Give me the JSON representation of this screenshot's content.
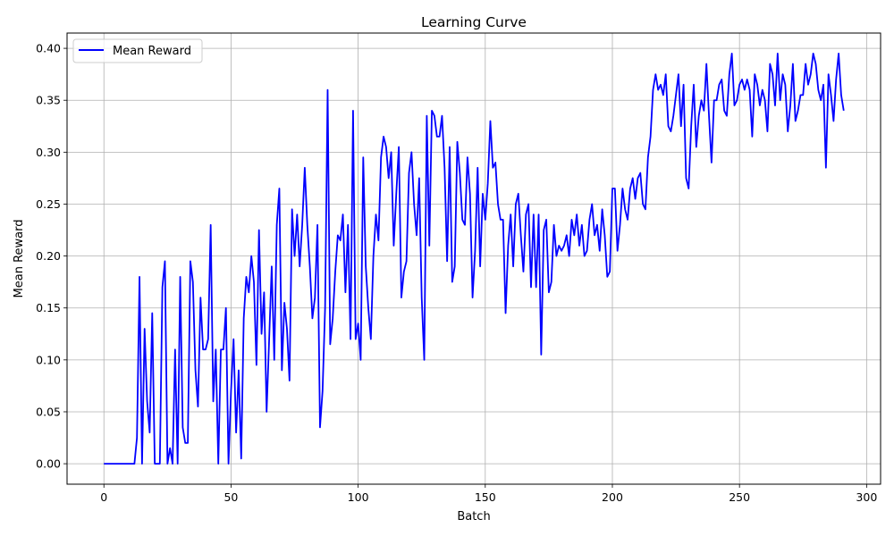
{
  "chart_data": {
    "type": "line",
    "title": "Learning Curve",
    "xlabel": "Batch",
    "ylabel": "Mean Reward",
    "xlim": [
      -14.5,
      305.5
    ],
    "ylim": [
      -0.0197,
      0.4147
    ],
    "xticks": [
      0,
      50,
      100,
      150,
      200,
      250,
      300
    ],
    "yticks": [
      0.0,
      0.05,
      0.1,
      0.15,
      0.2,
      0.25,
      0.3,
      0.35,
      0.4
    ],
    "grid": true,
    "legend_position": "top-left",
    "series": [
      {
        "name": "Mean Reward",
        "color": "#0000ff",
        "x": [
          0,
          1,
          2,
          3,
          4,
          5,
          6,
          7,
          8,
          9,
          10,
          11,
          12,
          13,
          14,
          15,
          16,
          17,
          18,
          19,
          20,
          21,
          22,
          23,
          24,
          25,
          26,
          27,
          28,
          29,
          30,
          31,
          32,
          33,
          34,
          35,
          36,
          37,
          38,
          39,
          40,
          41,
          42,
          43,
          44,
          45,
          46,
          47,
          48,
          49,
          50,
          51,
          52,
          53,
          54,
          55,
          56,
          57,
          58,
          59,
          60,
          61,
          62,
          63,
          64,
          65,
          66,
          67,
          68,
          69,
          70,
          71,
          72,
          73,
          74,
          75,
          76,
          77,
          78,
          79,
          80,
          81,
          82,
          83,
          84,
          85,
          86,
          87,
          88,
          89,
          90,
          91,
          92,
          93,
          94,
          95,
          96,
          97,
          98,
          99,
          100,
          101,
          102,
          103,
          104,
          105,
          106,
          107,
          108,
          109,
          110,
          111,
          112,
          113,
          114,
          115,
          116,
          117,
          118,
          119,
          120,
          121,
          122,
          123,
          124,
          125,
          126,
          127,
          128,
          129,
          130,
          131,
          132,
          133,
          134,
          135,
          136,
          137,
          138,
          139,
          140,
          141,
          142,
          143,
          144,
          145,
          146,
          147,
          148,
          149,
          150,
          151,
          152,
          153,
          154,
          155,
          156,
          157,
          158,
          159,
          160,
          161,
          162,
          163,
          164,
          165,
          166,
          167,
          168,
          169,
          170,
          171,
          172,
          173,
          174,
          175,
          176,
          177,
          178,
          179,
          180,
          181,
          182,
          183,
          184,
          185,
          186,
          187,
          188,
          189,
          190,
          191,
          192,
          193,
          194,
          195,
          196,
          197,
          198,
          199,
          200,
          201,
          202,
          203,
          204,
          205,
          206,
          207,
          208,
          209,
          210,
          211,
          212,
          213,
          214,
          215,
          216,
          217,
          218,
          219,
          220,
          221,
          222,
          223,
          224,
          225,
          226,
          227,
          228,
          229,
          230,
          231,
          232,
          233,
          234,
          235,
          236,
          237,
          238,
          239,
          240,
          241,
          242,
          243,
          244,
          245,
          246,
          247,
          248,
          249,
          250,
          251,
          252,
          253,
          254,
          255,
          256,
          257,
          258,
          259,
          260,
          261,
          262,
          263,
          264,
          265,
          266,
          267,
          268,
          269,
          270,
          271,
          272,
          273,
          274,
          275,
          276,
          277,
          278,
          279,
          280,
          281,
          282,
          283,
          284,
          285,
          286,
          287,
          288,
          289,
          290,
          291
        ],
        "y": [
          0,
          0,
          0,
          0,
          0,
          0,
          0,
          0,
          0,
          0,
          0,
          0,
          0,
          0.025,
          0.18,
          0,
          0.13,
          0.06,
          0.03,
          0.145,
          0,
          0,
          0,
          0.17,
          0.195,
          0,
          0.015,
          0,
          0.11,
          0,
          0.18,
          0.035,
          0.02,
          0.02,
          0.195,
          0.175,
          0.09,
          0.055,
          0.16,
          0.11,
          0.11,
          0.12,
          0.23,
          0.06,
          0.11,
          0,
          0.11,
          0.11,
          0.15,
          0,
          0.07,
          0.12,
          0.03,
          0.09,
          0.005,
          0.14,
          0.18,
          0.165,
          0.2,
          0.175,
          0.095,
          0.225,
          0.125,
          0.165,
          0.05,
          0.12,
          0.19,
          0.1,
          0.23,
          0.265,
          0.09,
          0.155,
          0.13,
          0.08,
          0.245,
          0.2,
          0.24,
          0.19,
          0.23,
          0.285,
          0.23,
          0.19,
          0.14,
          0.16,
          0.23,
          0.035,
          0.07,
          0.15,
          0.36,
          0.115,
          0.14,
          0.185,
          0.22,
          0.215,
          0.24,
          0.165,
          0.23,
          0.12,
          0.34,
          0.12,
          0.135,
          0.1,
          0.295,
          0.19,
          0.15,
          0.12,
          0.2,
          0.24,
          0.215,
          0.295,
          0.315,
          0.305,
          0.275,
          0.3,
          0.21,
          0.26,
          0.305,
          0.16,
          0.185,
          0.195,
          0.28,
          0.3,
          0.25,
          0.22,
          0.275,
          0.16,
          0.1,
          0.335,
          0.21,
          0.34,
          0.335,
          0.315,
          0.315,
          0.335,
          0.285,
          0.195,
          0.305,
          0.175,
          0.19,
          0.31,
          0.28,
          0.235,
          0.23,
          0.295,
          0.26,
          0.16,
          0.205,
          0.285,
          0.19,
          0.26,
          0.235,
          0.27,
          0.33,
          0.285,
          0.29,
          0.25,
          0.235,
          0.235,
          0.145,
          0.21,
          0.24,
          0.19,
          0.25,
          0.26,
          0.22,
          0.185,
          0.24,
          0.25,
          0.17,
          0.24,
          0.17,
          0.24,
          0.105,
          0.225,
          0.235,
          0.165,
          0.175,
          0.23,
          0.2,
          0.21,
          0.205,
          0.21,
          0.22,
          0.2,
          0.235,
          0.22,
          0.24,
          0.21,
          0.23,
          0.2,
          0.205,
          0.235,
          0.25,
          0.22,
          0.23,
          0.205,
          0.245,
          0.22,
          0.18,
          0.185,
          0.265,
          0.265,
          0.205,
          0.23,
          0.265,
          0.245,
          0.235,
          0.265,
          0.275,
          0.255,
          0.275,
          0.28,
          0.25,
          0.245,
          0.295,
          0.315,
          0.36,
          0.375,
          0.36,
          0.365,
          0.355,
          0.375,
          0.325,
          0.32,
          0.335,
          0.355,
          0.375,
          0.325,
          0.365,
          0.275,
          0.265,
          0.325,
          0.365,
          0.305,
          0.335,
          0.35,
          0.34,
          0.385,
          0.335,
          0.29,
          0.35,
          0.35,
          0.365,
          0.37,
          0.34,
          0.335,
          0.375,
          0.395,
          0.345,
          0.35,
          0.365,
          0.37,
          0.36,
          0.37,
          0.36,
          0.315,
          0.375,
          0.365,
          0.345,
          0.36,
          0.35,
          0.32,
          0.385,
          0.375,
          0.345,
          0.395,
          0.35,
          0.375,
          0.365,
          0.32,
          0.345,
          0.385,
          0.33,
          0.34,
          0.355,
          0.355,
          0.385,
          0.365,
          0.375,
          0.395,
          0.385,
          0.36,
          0.35,
          0.365,
          0.285,
          0.375,
          0.355,
          0.33,
          0.37,
          0.395,
          0.355,
          0.34
        ]
      }
    ]
  }
}
